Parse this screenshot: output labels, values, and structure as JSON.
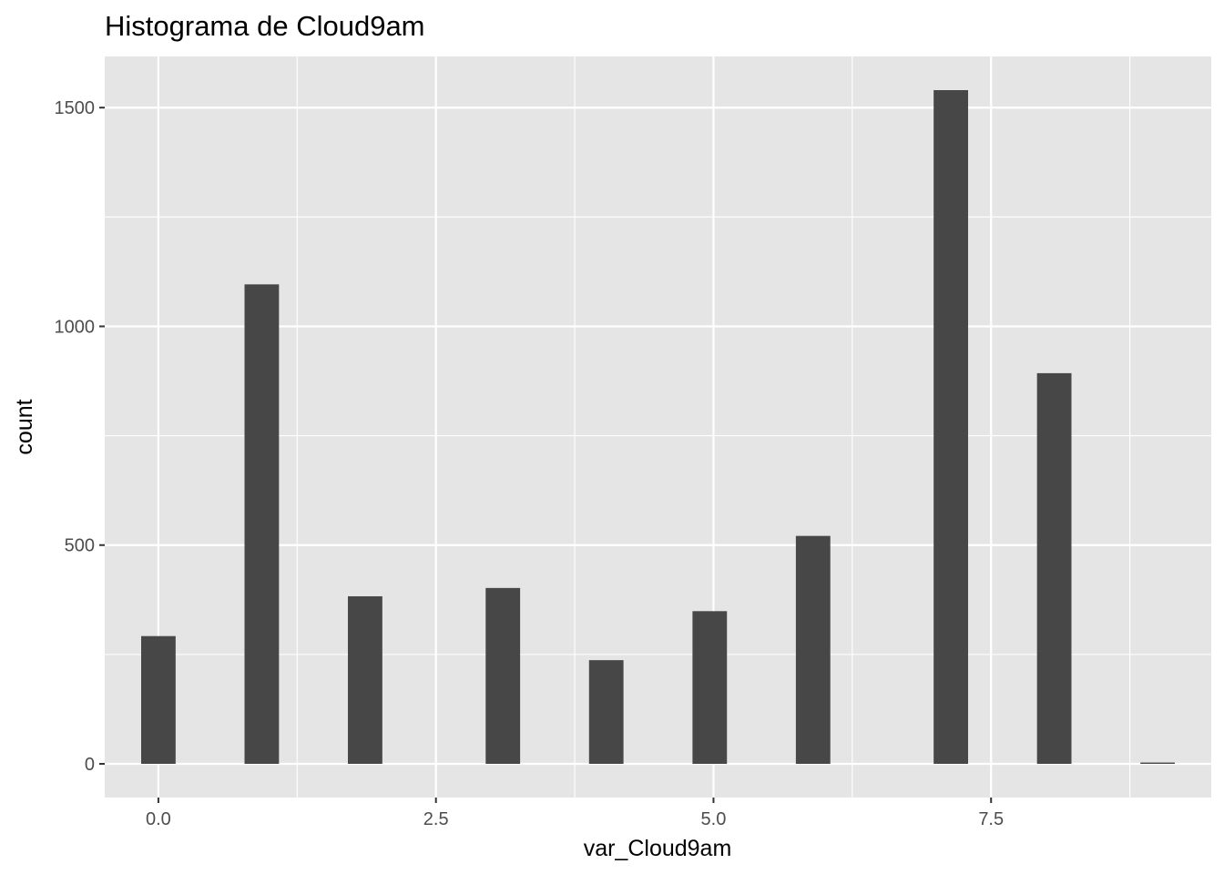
{
  "chart_data": {
    "type": "bar",
    "title": "Histograma de Cloud9am",
    "xlabel": "var_Cloud9am",
    "ylabel": "count",
    "xlim": [
      -0.4833,
      9.4833
    ],
    "ylim": [
      -77,
      1617
    ],
    "x_ticks": [
      {
        "value": 0,
        "label": "0.0"
      },
      {
        "value": 2.5,
        "label": "2.5"
      },
      {
        "value": 5,
        "label": "5.0"
      },
      {
        "value": 7.5,
        "label": "7.5"
      }
    ],
    "y_ticks": [
      {
        "value": 0,
        "label": "0"
      },
      {
        "value": 500,
        "label": "500"
      },
      {
        "value": 1000,
        "label": "1000"
      },
      {
        "value": 1500,
        "label": "1500"
      }
    ],
    "bin_width": 0.3103,
    "bins": [
      {
        "x": 0.0,
        "count": 292
      },
      {
        "x": 0.931,
        "count": 1096
      },
      {
        "x": 1.862,
        "count": 383
      },
      {
        "x": 3.103,
        "count": 402
      },
      {
        "x": 4.034,
        "count": 237
      },
      {
        "x": 4.966,
        "count": 349
      },
      {
        "x": 5.897,
        "count": 521
      },
      {
        "x": 7.138,
        "count": 1540
      },
      {
        "x": 8.069,
        "count": 893
      },
      {
        "x": 9.0,
        "count": 3
      }
    ],
    "grid": true,
    "legend": "none",
    "colors": {
      "panel_background": "#e5e5e5",
      "grid_major": "#ffffff",
      "bar_fill": "#474747",
      "tick_text": "#4d4d4d",
      "tick_mark": "#333333"
    }
  }
}
